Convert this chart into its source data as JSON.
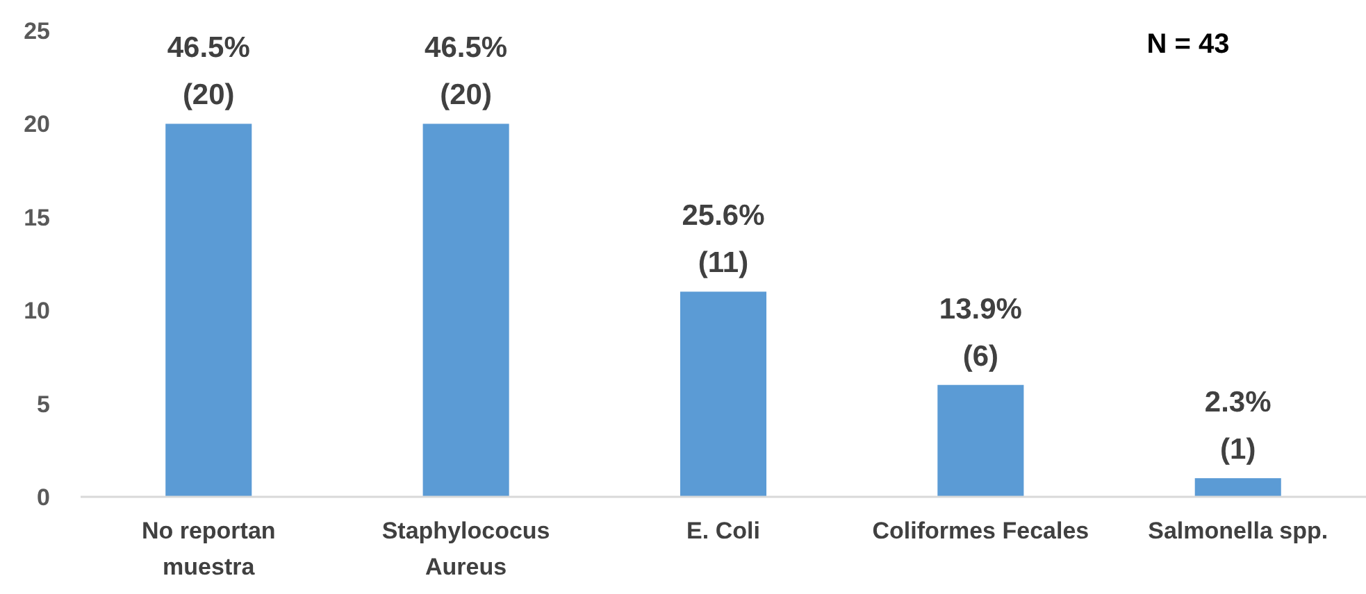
{
  "chart_data": {
    "type": "bar",
    "categories": [
      "No reportan\nmuestra",
      "Staphylococus\nAureus",
      "E. Coli",
      "Coliformes Fecales",
      "Salmonella spp."
    ],
    "values": [
      20,
      20,
      11,
      6,
      1
    ],
    "color": "#5b9bd5",
    "value_labels": [
      "46.5%\n(20)",
      "46.5%\n(20)",
      "25.6%\n(11)",
      "13.9%\n(6)",
      "2.3%\n(1)"
    ],
    "ylim": [
      0,
      25
    ],
    "yticks": [
      0,
      5,
      10,
      15,
      20,
      25
    ],
    "annotations": [
      "N = 43"
    ]
  }
}
